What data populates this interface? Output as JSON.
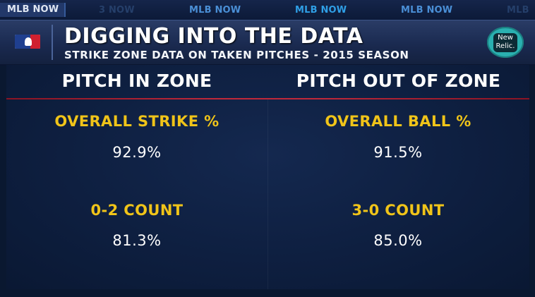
{
  "ticker": {
    "items": [
      "MLB NOW",
      "3 NOW",
      "MLB NOW",
      "MLB NOW",
      "MLB NOW",
      "MLB"
    ]
  },
  "header": {
    "title": "DIGGING INTO THE DATA",
    "subtitle": "STRIKE ZONE DATA ON TAKEN PITCHES - 2015 SEASON",
    "sponsor": {
      "line1": "New",
      "line2": "Relic."
    }
  },
  "columns": [
    {
      "heading": "PITCH IN ZONE",
      "stats": [
        {
          "label": "OVERALL STRIKE %",
          "value": "92.9%"
        },
        {
          "label": "0-2 COUNT",
          "value": "81.3%"
        }
      ]
    },
    {
      "heading": "PITCH OUT OF ZONE",
      "stats": [
        {
          "label": "OVERALL BALL %",
          "value": "91.5%"
        },
        {
          "label": "3-0 COUNT",
          "value": "85.0%"
        }
      ]
    }
  ],
  "colors": {
    "label": "#f0c419",
    "value": "#ffffff",
    "accent_rule": "#c0283a",
    "ticker": "#4a8fd6"
  }
}
